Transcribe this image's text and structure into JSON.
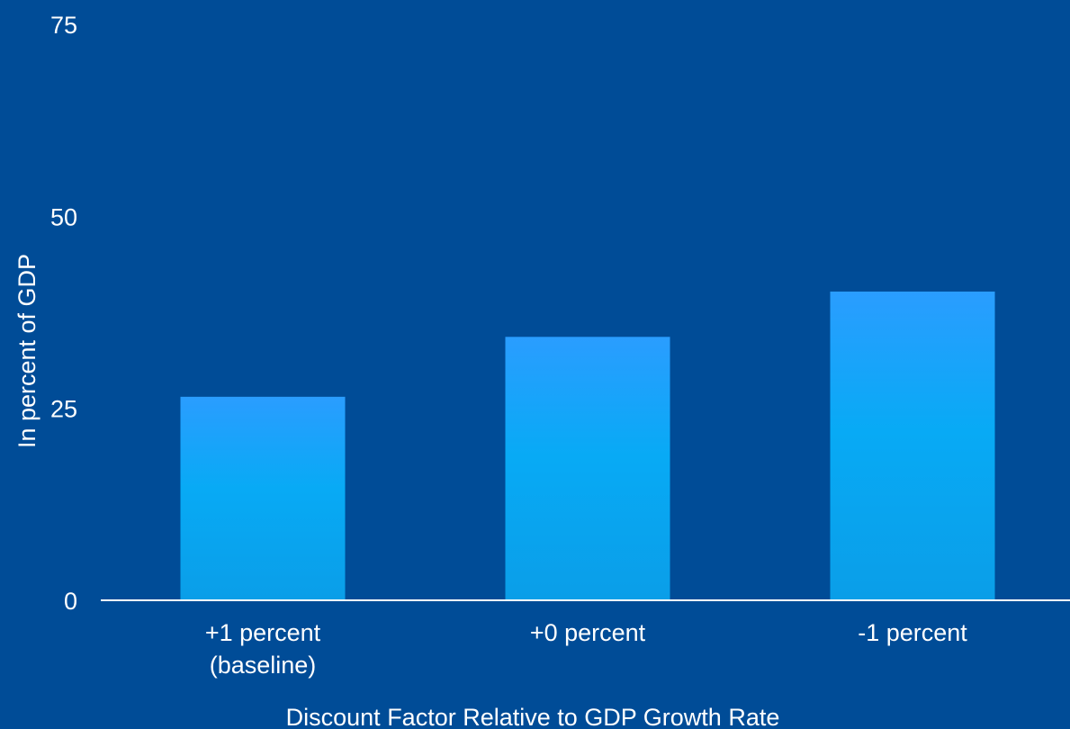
{
  "chart_data": {
    "type": "bar",
    "title": "",
    "xlabel": "Discount Factor Relative to GDP Growth Rate",
    "ylabel": "In percent of GDP",
    "categories": [
      [
        "+1 percent",
        "(baseline)"
      ],
      [
        "+0 percent"
      ],
      [
        "-1 percent"
      ]
    ],
    "values": [
      26.5,
      34.3,
      40.2
    ],
    "ylim": [
      0,
      75
    ],
    "yticks": [
      0,
      25,
      50,
      75
    ],
    "grid": false,
    "legend": "none"
  },
  "colors": {
    "background": "#004c97",
    "bar_top": "#2a9dff",
    "bar_mid": "#08aaf5",
    "bar_bottom": "#0a9ee8",
    "axis_line": "#ffffff",
    "text": "#ffffff"
  }
}
